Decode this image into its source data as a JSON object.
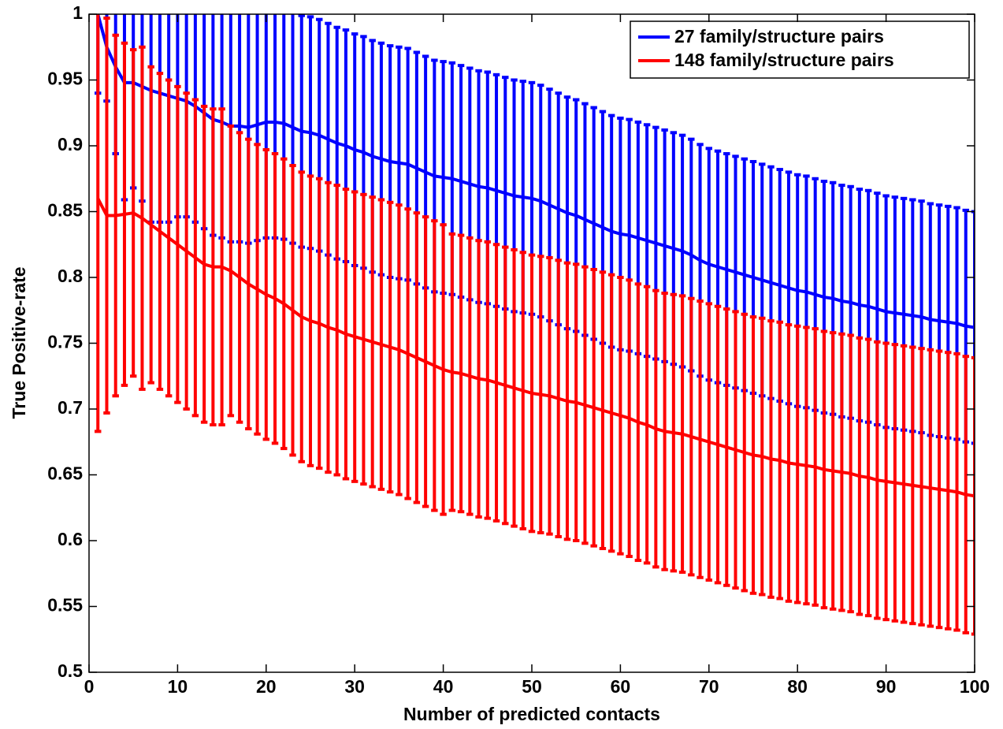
{
  "chart_data": {
    "type": "errorbar",
    "xlabel": "Number of predicted contacts",
    "ylabel": "True Positive-rate",
    "x": [
      1,
      2,
      3,
      4,
      5,
      6,
      7,
      8,
      9,
      10,
      11,
      12,
      13,
      14,
      15,
      16,
      17,
      18,
      19,
      20,
      21,
      22,
      23,
      24,
      25,
      26,
      27,
      28,
      29,
      30,
      31,
      32,
      33,
      34,
      35,
      36,
      37,
      38,
      39,
      40,
      41,
      42,
      43,
      44,
      45,
      46,
      47,
      48,
      49,
      50,
      51,
      52,
      53,
      54,
      55,
      56,
      57,
      58,
      59,
      60,
      61,
      62,
      63,
      64,
      65,
      66,
      67,
      68,
      69,
      70,
      71,
      72,
      73,
      74,
      75,
      76,
      77,
      78,
      79,
      80,
      81,
      82,
      83,
      84,
      85,
      86,
      87,
      88,
      89,
      90,
      91,
      92,
      93,
      94,
      95,
      96,
      97,
      98,
      99,
      100
    ],
    "xlim": [
      0,
      100
    ],
    "xticks": [
      0,
      10,
      20,
      30,
      40,
      50,
      60,
      70,
      80,
      90,
      100
    ],
    "ylim": [
      0.5,
      1
    ],
    "yticks": [
      0.5,
      0.55,
      0.6,
      0.65,
      0.7,
      0.75,
      0.8,
      0.85,
      0.9,
      0.95,
      1
    ],
    "legend": "upper right",
    "series": [
      {
        "name": "27 family/structure pairs",
        "color": "#0000ff",
        "values": [
          1.0,
          0.975,
          0.96,
          0.948,
          0.948,
          0.945,
          0.942,
          0.94,
          0.938,
          0.936,
          0.934,
          0.93,
          0.925,
          0.92,
          0.918,
          0.915,
          0.915,
          0.914,
          0.916,
          0.918,
          0.918,
          0.917,
          0.914,
          0.911,
          0.91,
          0.908,
          0.905,
          0.902,
          0.9,
          0.897,
          0.895,
          0.892,
          0.89,
          0.888,
          0.887,
          0.886,
          0.883,
          0.88,
          0.877,
          0.876,
          0.875,
          0.873,
          0.871,
          0.869,
          0.868,
          0.866,
          0.864,
          0.862,
          0.861,
          0.86,
          0.858,
          0.855,
          0.852,
          0.849,
          0.847,
          0.844,
          0.841,
          0.838,
          0.835,
          0.833,
          0.832,
          0.83,
          0.828,
          0.826,
          0.824,
          0.822,
          0.82,
          0.817,
          0.813,
          0.81,
          0.808,
          0.806,
          0.804,
          0.802,
          0.8,
          0.798,
          0.796,
          0.794,
          0.792,
          0.79,
          0.789,
          0.787,
          0.785,
          0.784,
          0.782,
          0.781,
          0.779,
          0.778,
          0.776,
          0.774,
          0.773,
          0.772,
          0.771,
          0.77,
          0.768,
          0.767,
          0.766,
          0.765,
          0.763,
          0.762
        ],
        "errors": [
          0.06,
          0.041,
          0.066,
          0.089,
          0.08,
          0.087,
          0.1,
          0.098,
          0.096,
          0.09,
          0.088,
          0.088,
          0.088,
          0.088,
          0.088,
          0.088,
          0.088,
          0.088,
          0.088,
          0.088,
          0.088,
          0.088,
          0.088,
          0.088,
          0.088,
          0.088,
          0.088,
          0.088,
          0.088,
          0.088,
          0.088,
          0.088,
          0.088,
          0.088,
          0.088,
          0.088,
          0.088,
          0.088,
          0.088,
          0.088,
          0.088,
          0.088,
          0.088,
          0.088,
          0.088,
          0.088,
          0.088,
          0.088,
          0.088,
          0.088,
          0.088,
          0.088,
          0.088,
          0.088,
          0.088,
          0.088,
          0.088,
          0.088,
          0.088,
          0.088,
          0.088,
          0.088,
          0.088,
          0.088,
          0.088,
          0.088,
          0.088,
          0.088,
          0.088,
          0.088,
          0.088,
          0.088,
          0.088,
          0.088,
          0.088,
          0.088,
          0.088,
          0.088,
          0.088,
          0.088,
          0.088,
          0.088,
          0.088,
          0.088,
          0.088,
          0.088,
          0.088,
          0.088,
          0.088,
          0.088,
          0.088,
          0.088,
          0.088,
          0.088,
          0.088,
          0.088,
          0.088,
          0.088,
          0.088,
          0.088
        ]
      },
      {
        "name": "148 family/structure pairs",
        "color": "#ff0000",
        "values": [
          0.86,
          0.847,
          0.847,
          0.848,
          0.849,
          0.845,
          0.84,
          0.835,
          0.83,
          0.825,
          0.82,
          0.815,
          0.81,
          0.808,
          0.808,
          0.805,
          0.8,
          0.795,
          0.791,
          0.787,
          0.784,
          0.78,
          0.775,
          0.77,
          0.767,
          0.765,
          0.762,
          0.76,
          0.757,
          0.755,
          0.753,
          0.751,
          0.749,
          0.747,
          0.745,
          0.742,
          0.739,
          0.736,
          0.733,
          0.73,
          0.728,
          0.727,
          0.725,
          0.723,
          0.722,
          0.72,
          0.718,
          0.716,
          0.714,
          0.712,
          0.711,
          0.71,
          0.708,
          0.706,
          0.705,
          0.703,
          0.701,
          0.699,
          0.697,
          0.695,
          0.693,
          0.69,
          0.688,
          0.685,
          0.683,
          0.682,
          0.681,
          0.679,
          0.677,
          0.675,
          0.673,
          0.671,
          0.669,
          0.667,
          0.665,
          0.664,
          0.662,
          0.661,
          0.659,
          0.658,
          0.657,
          0.656,
          0.654,
          0.653,
          0.652,
          0.651,
          0.649,
          0.648,
          0.646,
          0.645,
          0.644,
          0.643,
          0.642,
          0.641,
          0.64,
          0.639,
          0.638,
          0.637,
          0.635,
          0.634
        ],
        "errors": [
          0.177,
          0.15,
          0.137,
          0.13,
          0.124,
          0.13,
          0.12,
          0.12,
          0.12,
          0.12,
          0.12,
          0.12,
          0.12,
          0.12,
          0.12,
          0.11,
          0.11,
          0.11,
          0.11,
          0.11,
          0.11,
          0.11,
          0.11,
          0.11,
          0.11,
          0.11,
          0.11,
          0.11,
          0.11,
          0.11,
          0.11,
          0.11,
          0.11,
          0.11,
          0.11,
          0.11,
          0.11,
          0.11,
          0.11,
          0.11,
          0.105,
          0.105,
          0.105,
          0.105,
          0.105,
          0.105,
          0.105,
          0.105,
          0.105,
          0.105,
          0.105,
          0.105,
          0.105,
          0.105,
          0.105,
          0.105,
          0.105,
          0.105,
          0.105,
          0.105,
          0.105,
          0.105,
          0.105,
          0.105,
          0.105,
          0.105,
          0.105,
          0.105,
          0.105,
          0.105,
          0.105,
          0.105,
          0.105,
          0.105,
          0.105,
          0.105,
          0.105,
          0.105,
          0.105,
          0.105,
          0.105,
          0.105,
          0.105,
          0.105,
          0.105,
          0.105,
          0.105,
          0.105,
          0.105,
          0.105,
          0.105,
          0.105,
          0.105,
          0.105,
          0.105,
          0.105,
          0.105,
          0.105,
          0.105,
          0.105
        ]
      }
    ]
  }
}
